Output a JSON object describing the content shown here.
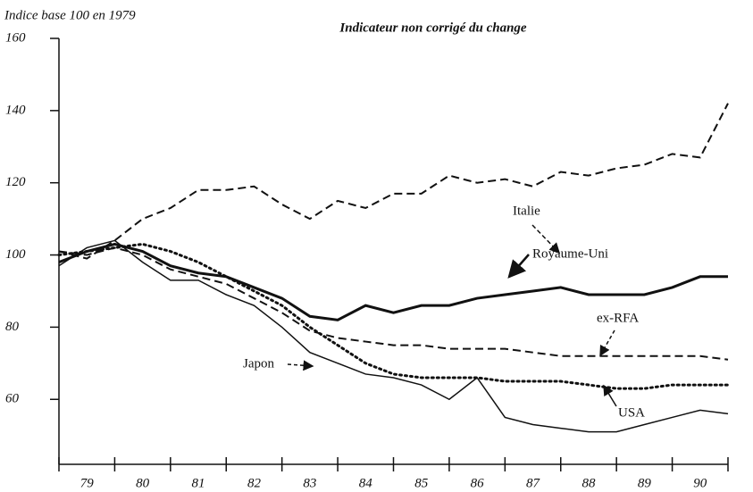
{
  "chart_data": {
    "type": "line",
    "title": "Indicateur non corrigé du change",
    "y_label": "Indice base 100 en 1979",
    "x": [
      79,
      79.5,
      80,
      80.5,
      81,
      81.5,
      82,
      82.5,
      83,
      83.5,
      84,
      84.5,
      85,
      85.5,
      86,
      86.5,
      87,
      87.5,
      88,
      88.5,
      89,
      89.5,
      90,
      90.5,
      91
    ],
    "xlim": [
      79,
      91
    ],
    "xticks": [
      79,
      80,
      81,
      82,
      83,
      84,
      85,
      86,
      87,
      88,
      89,
      90,
      91
    ],
    "year_labels": [
      "79",
      "80",
      "81",
      "82",
      "83",
      "84",
      "85",
      "86",
      "87",
      "88",
      "89",
      "90"
    ],
    "ylim": [
      42,
      160
    ],
    "yticks": [
      60,
      80,
      100,
      120,
      140,
      160
    ],
    "grid": false,
    "series": [
      {
        "name": "Italie",
        "color": "#111111",
        "style": "dashed",
        "width": 2,
        "values": [
          101,
          99,
          104,
          110,
          113,
          118,
          118,
          119,
          114,
          110,
          115,
          113,
          117,
          117,
          122,
          120,
          121,
          119,
          123,
          122,
          124,
          125,
          128,
          127,
          142
        ]
      },
      {
        "name": "Royaume-Uni",
        "color": "#111111",
        "style": "solid",
        "width": 3,
        "values": [
          98,
          101,
          103,
          101,
          97,
          95,
          94,
          91,
          88,
          83,
          82,
          86,
          84,
          86,
          86,
          88,
          89,
          90,
          91,
          89,
          89,
          89,
          91,
          94,
          94
        ]
      },
      {
        "name": "ex-RFA",
        "color": "#111111",
        "style": "dashed",
        "width": 2,
        "values": [
          101,
          100,
          102,
          100,
          96,
          94,
          92,
          88,
          84,
          79,
          77,
          76,
          75,
          75,
          74,
          74,
          74,
          73,
          72,
          72,
          72,
          72,
          72,
          72,
          71
        ]
      },
      {
        "name": "USA",
        "color": "#111111",
        "style": "dotted",
        "width": 3,
        "values": [
          100,
          101,
          102,
          103,
          101,
          98,
          94,
          90,
          86,
          80,
          75,
          70,
          67,
          66,
          66,
          66,
          65,
          65,
          65,
          64,
          63,
          63,
          64,
          64,
          64
        ]
      },
      {
        "name": "Japon",
        "color": "#111111",
        "style": "solid",
        "width": 1.5,
        "values": [
          97,
          102,
          104,
          98,
          93,
          93,
          89,
          86,
          80,
          73,
          70,
          67,
          66,
          64,
          60,
          66,
          55,
          53,
          52,
          51,
          51,
          53,
          55,
          57,
          56
        ]
      }
    ]
  }
}
